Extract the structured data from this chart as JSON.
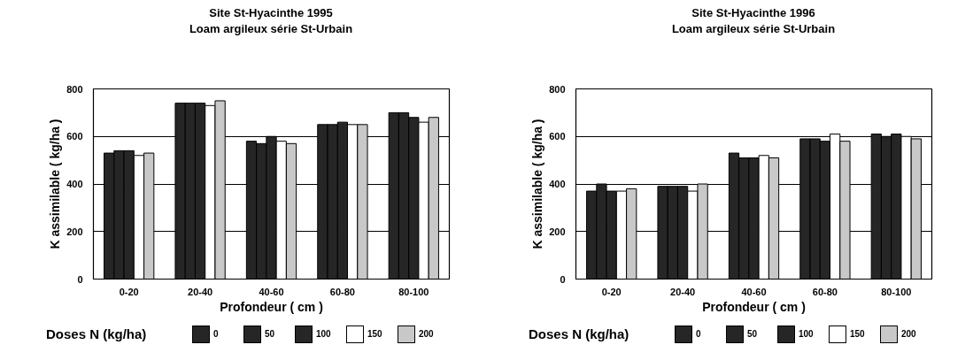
{
  "chart_data": [
    {
      "type": "bar",
      "title": "Site St-Hyacinthe 1995",
      "subtitle": "Loam argileux série St-Urbain",
      "xlabel": "Profondeur ( cm )",
      "ylabel": "K assimilable ( kg/ha )",
      "legend_title": "Doses N (kg/ha)",
      "categories": [
        "0-20",
        "20-40",
        "40-60",
        "60-80",
        "80-100"
      ],
      "series": [
        {
          "name": "0",
          "color": "#262626",
          "values": [
            530,
            740,
            580,
            650,
            700
          ]
        },
        {
          "name": "50",
          "color": "#262626",
          "values": [
            540,
            740,
            570,
            650,
            700
          ]
        },
        {
          "name": "100",
          "color": "#262626",
          "values": [
            540,
            740,
            600,
            660,
            680
          ]
        },
        {
          "name": "150",
          "color": "#ffffff",
          "values": [
            520,
            730,
            580,
            650,
            660
          ]
        },
        {
          "name": "200",
          "color": "#c8c8c8",
          "values": [
            530,
            750,
            570,
            650,
            680
          ]
        }
      ],
      "ylim": [
        0,
        800
      ],
      "yticks": [
        0,
        200,
        400,
        600,
        800
      ],
      "grid": "y",
      "legend": "bottom"
    },
    {
      "type": "bar",
      "title": "Site St-Hyacinthe 1996",
      "subtitle": "Loam argileux série St-Urbain",
      "xlabel": "Profondeur ( cm )",
      "ylabel": "K assimilable ( kg/ha )",
      "legend_title": "Doses N (kg/ha)",
      "categories": [
        "0-20",
        "20-40",
        "40-60",
        "60-80",
        "80-100"
      ],
      "series": [
        {
          "name": "0",
          "color": "#262626",
          "values": [
            370,
            390,
            530,
            590,
            610
          ]
        },
        {
          "name": "50",
          "color": "#262626",
          "values": [
            400,
            390,
            510,
            590,
            600
          ]
        },
        {
          "name": "100",
          "color": "#262626",
          "values": [
            370,
            390,
            510,
            580,
            610
          ]
        },
        {
          "name": "150",
          "color": "#ffffff",
          "values": [
            370,
            370,
            520,
            610,
            600
          ]
        },
        {
          "name": "200",
          "color": "#c8c8c8",
          "values": [
            380,
            400,
            510,
            580,
            590
          ]
        }
      ],
      "ylim": [
        0,
        800
      ],
      "yticks": [
        0,
        200,
        400,
        600,
        800
      ],
      "grid": "y",
      "legend": "bottom"
    }
  ]
}
